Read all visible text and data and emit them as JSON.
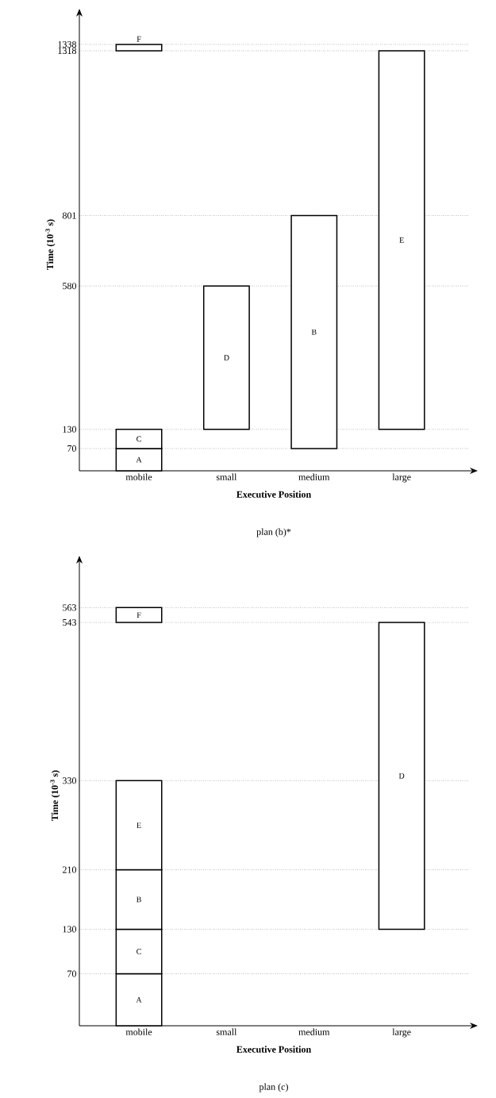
{
  "chart_data": [
    {
      "type": "bar",
      "title": "plan (b)*",
      "xlabel": "Executive Position",
      "ylabel": "Time (10$^{-3}$ s)",
      "categories": [
        "mobile",
        "small",
        "medium",
        "large"
      ],
      "ylim": [
        0,
        1420
      ],
      "yticks": [
        70,
        130,
        580,
        801,
        1318,
        1338
      ],
      "grid": "y",
      "series": [
        {
          "name": "A",
          "color": "#ffffff",
          "base": [
            0,
            null,
            null,
            null
          ],
          "values": [
            70,
            null,
            null,
            null
          ]
        },
        {
          "name": "C",
          "color": "#ffffff",
          "base": [
            70,
            null,
            null,
            null
          ],
          "values": [
            60,
            null,
            null,
            null
          ]
        },
        {
          "name": "F",
          "color": "#ffffff",
          "base": [
            1318,
            null,
            null,
            null
          ],
          "values": [
            20,
            null,
            null,
            null
          ]
        },
        {
          "name": "D",
          "color": "#ffffff",
          "base": [
            null,
            130,
            null,
            null
          ],
          "values": [
            null,
            450,
            null,
            null
          ]
        },
        {
          "name": "B",
          "color": "#ffffff",
          "base": [
            null,
            null,
            70,
            null
          ],
          "values": [
            null,
            null,
            731,
            null
          ]
        },
        {
          "name": "E",
          "color": "#ffffff",
          "base": [
            null,
            null,
            null,
            130
          ],
          "values": [
            null,
            null,
            null,
            1188
          ]
        }
      ]
    },
    {
      "type": "bar",
      "title": "plan (c)",
      "xlabel": "Executive Position",
      "ylabel": "Time (10$^{-3}$ s)",
      "categories": [
        "mobile",
        "small",
        "medium",
        "large"
      ],
      "ylim": [
        0,
        620
      ],
      "yticks": [
        70,
        130,
        210,
        330,
        543,
        563
      ],
      "grid": "y",
      "series": [
        {
          "name": "A",
          "color": "#ffffff",
          "base": [
            0,
            null,
            null,
            null
          ],
          "values": [
            70,
            null,
            null,
            null
          ]
        },
        {
          "name": "C",
          "color": "#ffffff",
          "base": [
            70,
            null,
            null,
            null
          ],
          "values": [
            60,
            null,
            null,
            null
          ]
        },
        {
          "name": "B",
          "color": "#ffffff",
          "base": [
            130,
            null,
            null,
            null
          ],
          "values": [
            80,
            null,
            null,
            null
          ]
        },
        {
          "name": "E",
          "color": "#ffffff",
          "base": [
            210,
            null,
            null,
            null
          ],
          "values": [
            120,
            null,
            null,
            null
          ]
        },
        {
          "name": "F",
          "color": "#ffffff",
          "base": [
            543,
            null,
            null,
            null
          ],
          "values": [
            20,
            null,
            null,
            null
          ]
        },
        {
          "name": "D",
          "color": "#ffffff",
          "base": [
            null,
            null,
            null,
            130
          ],
          "values": [
            null,
            null,
            null,
            413
          ]
        }
      ]
    }
  ]
}
